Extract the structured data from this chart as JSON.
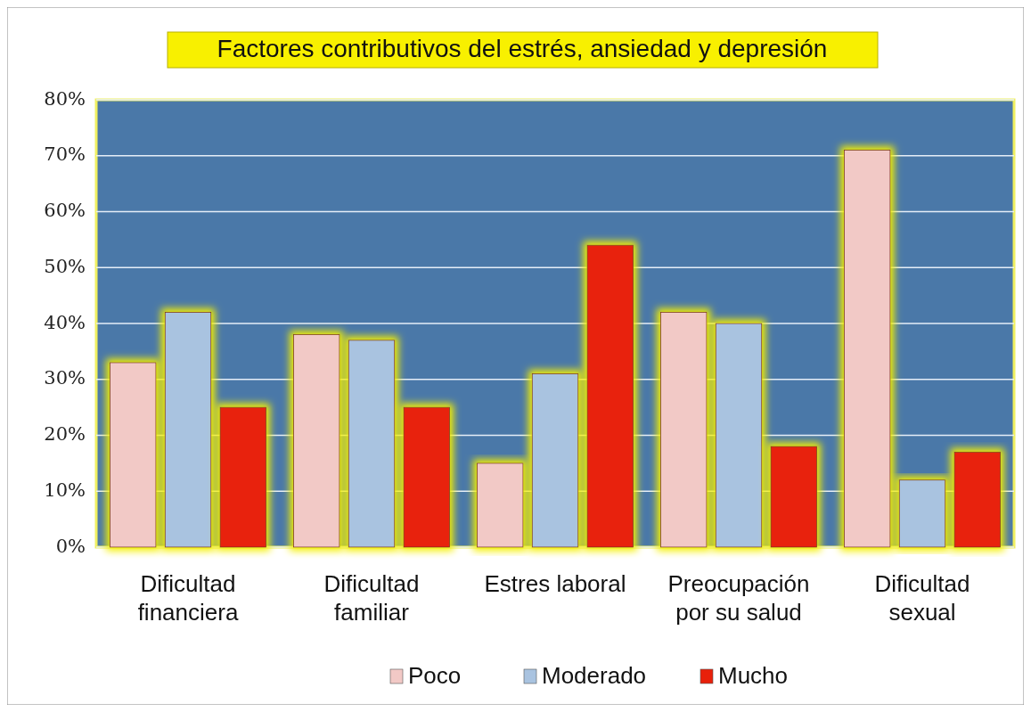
{
  "chart_data": {
    "type": "bar",
    "title": "Factores contributivos del estrés, ansiedad y depresión",
    "categories": [
      "Dificultad financiera",
      "Dificultad familiar",
      "Estres laboral",
      "Preocupación por su salud",
      "Dificultad sexual"
    ],
    "series": [
      {
        "name": "Poco",
        "color": "#f2c9c6",
        "values": [
          33,
          38,
          15,
          42,
          71
        ]
      },
      {
        "name": "Moderado",
        "color": "#a9c3e0",
        "values": [
          42,
          37,
          31,
          40,
          12
        ]
      },
      {
        "name": "Mucho",
        "color": "#e8200a",
        "values": [
          25,
          25,
          54,
          18,
          17
        ]
      }
    ],
    "ylim": [
      0,
      80
    ],
    "yticks": [
      {
        "value": 0,
        "label": "0%"
      },
      {
        "value": 10,
        "label": "10%"
      },
      {
        "value": 20,
        "label": "20%"
      },
      {
        "value": 30,
        "label": "30%"
      },
      {
        "value": 40,
        "label": "40%"
      },
      {
        "value": 50,
        "label": "50%"
      },
      {
        "value": 60,
        "label": "60%"
      },
      {
        "value": 70,
        "label": "70%"
      },
      {
        "value": 80,
        "label": "80%"
      }
    ],
    "grid": "y",
    "legend": "bottom"
  }
}
